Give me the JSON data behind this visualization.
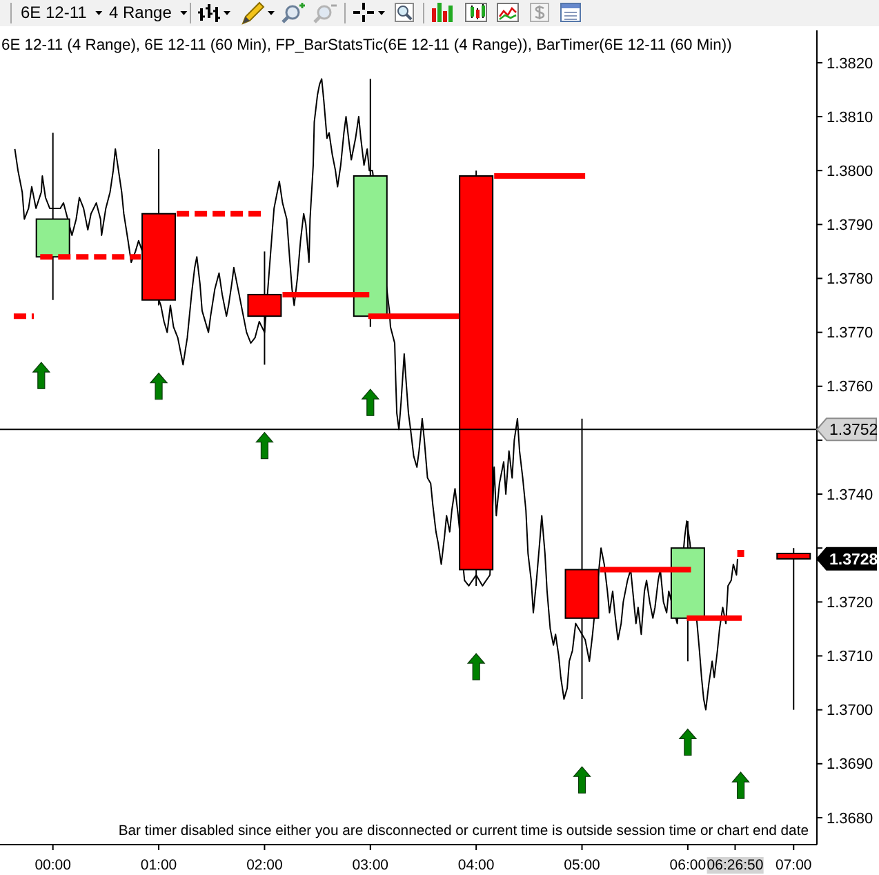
{
  "chart_data": {
    "type": "candlestick",
    "title": "6E 12-11 (4 Range), 6E 12-11 (60 Min), FP_BarStatsTic(6E 12-11 (4 Range)), BarTimer(6E 12-11 (60 Min))",
    "xlim": [
      -0.5,
      7.22
    ],
    "xticks": [
      {
        "value": 0,
        "label": "00:00"
      },
      {
        "value": 1,
        "label": "01:00"
      },
      {
        "value": 2,
        "label": "02:00"
      },
      {
        "value": 3,
        "label": "03:00"
      },
      {
        "value": 4,
        "label": "04:00"
      },
      {
        "value": 5,
        "label": "05:00"
      },
      {
        "value": 6,
        "label": "06:00"
      },
      {
        "value": 6.4472,
        "label": "06:26:50"
      },
      {
        "value": 7,
        "label": "07:00"
      }
    ],
    "ylim": [
      1.3675,
      1.3826
    ],
    "yticks": [
      {
        "value": 1.368,
        "label": "1.3680"
      },
      {
        "value": 1.369,
        "label": "1.3690"
      },
      {
        "value": 1.37,
        "label": "1.3700"
      },
      {
        "value": 1.371,
        "label": "1.3710"
      },
      {
        "value": 1.372,
        "label": "1.3720"
      },
      {
        "value": 1.373,
        "label": null
      },
      {
        "value": 1.374,
        "label": "1.3740"
      },
      {
        "value": 1.375,
        "label": null
      },
      {
        "value": 1.376,
        "label": "1.3760"
      },
      {
        "value": 1.377,
        "label": "1.3770"
      },
      {
        "value": 1.378,
        "label": "1.3780"
      },
      {
        "value": 1.379,
        "label": "1.3790"
      },
      {
        "value": 1.38,
        "label": "1.3800"
      },
      {
        "value": 1.381,
        "label": "1.3810"
      },
      {
        "value": 1.382,
        "label": "1.3820"
      }
    ],
    "series": [
      {
        "type": "line",
        "color": "#000000",
        "x": [
          -0.36,
          -0.33,
          -0.31,
          -0.29,
          -0.27,
          -0.23,
          -0.2,
          -0.16,
          -0.11,
          -0.1,
          -0.07,
          -0.03,
          0.07,
          0.1,
          0.18,
          0.22,
          0.25,
          0.29,
          0.33,
          0.36,
          0.41,
          0.45,
          0.46,
          0.5,
          0.54,
          0.57,
          0.59,
          0.62,
          0.65,
          0.67,
          0.71,
          0.74,
          0.78,
          0.81,
          1.02,
          1.05,
          1.08,
          1.11,
          1.14,
          1.18,
          1.21,
          1.23,
          1.27,
          1.31,
          1.34,
          1.36,
          1.39,
          1.41,
          1.47,
          1.49,
          1.53,
          1.57,
          1.6,
          1.64,
          1.66,
          1.69,
          1.71,
          1.75,
          1.79,
          1.83,
          1.87,
          1.91,
          1.95,
          2.0,
          2.07,
          2.09,
          2.12,
          2.14,
          2.17,
          2.21,
          2.24,
          2.26,
          2.28,
          2.31,
          2.34,
          2.37,
          2.39,
          2.42,
          2.43,
          2.46,
          2.47,
          2.5,
          2.52,
          2.54,
          2.56,
          2.59,
          2.61,
          2.64,
          2.67,
          2.69,
          2.72,
          2.75,
          2.77,
          2.8,
          2.82,
          2.86,
          2.89,
          2.91,
          2.94,
          2.97,
          2.99,
          3.02,
          3.18,
          3.19,
          3.23,
          3.24,
          3.25,
          3.27,
          3.29,
          3.32,
          3.33,
          3.36,
          3.38,
          3.41,
          3.44,
          3.46,
          3.49,
          3.51,
          3.54,
          3.57,
          3.59,
          3.62,
          3.64,
          3.67,
          3.7,
          3.72,
          3.75,
          3.77,
          3.8,
          3.83,
          3.89,
          3.93,
          4.0,
          4.06,
          4.13,
          4.17,
          4.19,
          4.22,
          4.26,
          4.28,
          4.31,
          4.34,
          4.36,
          4.39,
          4.41,
          4.44,
          4.47,
          4.49,
          4.52,
          4.54,
          4.57,
          4.6,
          4.62,
          4.65,
          4.67,
          4.7,
          4.73,
          4.75,
          4.78,
          4.8,
          4.83,
          4.86,
          4.88,
          4.91,
          4.94,
          5.03,
          5.07,
          5.1,
          5.18,
          5.21,
          5.24,
          5.26,
          5.29,
          5.31,
          5.34,
          5.37,
          5.39,
          5.43,
          5.46,
          5.48,
          5.51,
          5.53,
          5.56,
          5.59,
          5.61,
          5.64,
          5.67,
          5.69,
          5.72,
          5.74,
          5.77,
          5.8,
          5.82,
          5.9,
          5.97,
          5.99,
          6.02,
          6.11,
          6.13,
          6.15,
          6.17,
          6.2,
          6.23,
          6.25,
          6.28,
          6.3,
          6.33,
          6.36,
          6.38,
          6.41,
          6.43,
          6.46,
          6.47
        ],
        "values": [
          1.3804,
          1.38,
          1.3798,
          1.3796,
          1.3791,
          1.3793,
          1.3797,
          1.3793,
          1.3796,
          1.3799,
          1.3795,
          1.3793,
          1.3793,
          1.3794,
          1.3788,
          1.3791,
          1.3795,
          1.3793,
          1.3789,
          1.3792,
          1.3794,
          1.3791,
          1.3788,
          1.3793,
          1.3796,
          1.38,
          1.3804,
          1.38,
          1.3796,
          1.3792,
          1.3787,
          1.3783,
          1.3785,
          1.3787,
          1.3775,
          1.3772,
          1.377,
          1.3775,
          1.3771,
          1.3769,
          1.3766,
          1.3764,
          1.3769,
          1.3777,
          1.3782,
          1.3784,
          1.3779,
          1.3774,
          1.377,
          1.3773,
          1.3778,
          1.3781,
          1.3777,
          1.3773,
          1.3775,
          1.3779,
          1.3782,
          1.3778,
          1.3774,
          1.377,
          1.3768,
          1.3769,
          1.3772,
          1.377,
          1.3788,
          1.3793,
          1.3796,
          1.3798,
          1.3794,
          1.3791,
          1.3783,
          1.3778,
          1.3775,
          1.378,
          1.3787,
          1.3792,
          1.379,
          1.3783,
          1.3791,
          1.3801,
          1.3809,
          1.3814,
          1.3816,
          1.3817,
          1.3813,
          1.3806,
          1.3807,
          1.3803,
          1.38,
          1.3797,
          1.3801,
          1.3807,
          1.381,
          1.3805,
          1.3802,
          1.3806,
          1.381,
          1.3806,
          1.3801,
          1.3804,
          1.38,
          1.38,
          1.3774,
          1.3771,
          1.3768,
          1.3761,
          1.3755,
          1.3752,
          1.3757,
          1.3766,
          1.3763,
          1.3755,
          1.3752,
          1.3747,
          1.3745,
          1.3748,
          1.3754,
          1.375,
          1.3743,
          1.3742,
          1.3738,
          1.3733,
          1.3731,
          1.3727,
          1.3732,
          1.3736,
          1.3733,
          1.3737,
          1.3741,
          1.3736,
          1.3724,
          1.3723,
          1.3725,
          1.3723,
          1.3725,
          1.3745,
          1.3736,
          1.3742,
          1.3746,
          1.374,
          1.3748,
          1.3743,
          1.375,
          1.3754,
          1.3748,
          1.3743,
          1.3737,
          1.3729,
          1.3724,
          1.3718,
          1.3724,
          1.3731,
          1.3736,
          1.3729,
          1.3722,
          1.3715,
          1.3712,
          1.3714,
          1.371,
          1.3706,
          1.3702,
          1.3704,
          1.3709,
          1.3711,
          1.3716,
          1.3713,
          1.3709,
          1.3714,
          1.373,
          1.3727,
          1.3722,
          1.3718,
          1.3722,
          1.3718,
          1.3713,
          1.3716,
          1.372,
          1.3724,
          1.3726,
          1.3722,
          1.3716,
          1.3719,
          1.3714,
          1.3722,
          1.3724,
          1.372,
          1.3717,
          1.3719,
          1.3724,
          1.3726,
          1.372,
          1.3718,
          1.3722,
          1.3716,
          1.3732,
          1.3735,
          1.3731,
          1.3711,
          1.3706,
          1.3702,
          1.37,
          1.3705,
          1.3709,
          1.3706,
          1.3711,
          1.3715,
          1.3719,
          1.3716,
          1.3723,
          1.3724,
          1.3727,
          1.3725,
          1.3728
        ]
      },
      {
        "x": [
          0,
          1,
          2,
          3,
          4,
          5,
          6,
          7
        ],
        "ohlc": [
          [
            1.3784,
            1.3807,
            1.3776,
            1.3791
          ],
          [
            1.3792,
            1.3804,
            1.3775,
            1.3776
          ],
          [
            1.3777,
            1.3785,
            1.3764,
            1.3773
          ],
          [
            1.3773,
            1.3817,
            1.3771,
            1.3799
          ],
          [
            1.3799,
            1.38,
            1.3723,
            1.3726
          ],
          [
            1.3726,
            1.3754,
            1.3702,
            1.3717
          ],
          [
            1.3717,
            1.3735,
            1.3709,
            1.373
          ],
          [
            1.3729,
            1.373,
            1.37,
            1.3728
          ]
        ],
        "colors": [
          "#90ee90",
          "#ff0000",
          "#ff0000",
          "#90ee90",
          "#ff0000",
          "#ff0000",
          "#90ee90",
          "#ff0000"
        ]
      },
      {
        "type": "line",
        "color": "#ff0000",
        "line_style": "dashed",
        "x": [
          -0.37,
          -0.18
        ],
        "values": [
          1.3773,
          1.3773
        ]
      },
      {
        "type": "line",
        "color": "#ff0000",
        "line_style": "dashed",
        "x": [
          -0.12,
          0.83
        ],
        "values": [
          1.3784,
          1.3784
        ]
      },
      {
        "type": "line",
        "color": "#ff0000",
        "line_style": "dashed",
        "x": [
          1.17,
          2.0
        ],
        "values": [
          1.3792,
          1.3792
        ]
      },
      {
        "type": "line",
        "color": "#ff0000",
        "x": [
          2.17,
          2.99
        ],
        "values": [
          1.3777,
          1.3777
        ]
      },
      {
        "type": "line",
        "color": "#ff0000",
        "x": [
          2.98,
          3.84
        ],
        "values": [
          1.3773,
          1.3773
        ]
      },
      {
        "type": "line",
        "color": "#ff0000",
        "x": [
          4.17,
          5.03
        ],
        "values": [
          1.3799,
          1.3799
        ]
      },
      {
        "type": "line",
        "color": "#ff0000",
        "x": [
          5.17,
          6.03
        ],
        "values": [
          1.3726,
          1.3726
        ]
      },
      {
        "type": "line",
        "color": "#ff0000",
        "x": [
          5.99,
          6.51
        ],
        "values": [
          1.3717,
          1.3717
        ]
      },
      {
        "type": "scatter",
        "color": "#008000",
        "x": [
          -0.11,
          1,
          2,
          3,
          4,
          5,
          6,
          6.5
        ],
        "values": [
          1.3762,
          1.376,
          1.3749,
          1.3757,
          1.3708,
          1.3687,
          1.3694,
          1.3686
        ]
      },
      {
        "type": "scatter",
        "color": "#ff0000",
        "marker": "square",
        "x": [
          6.5
        ],
        "values": [
          1.3729
        ]
      }
    ],
    "ref_lines": [
      {
        "axis": "y",
        "value": 1.3752,
        "label": "1.3752",
        "color": "#000000"
      }
    ],
    "annotations": [
      "6E 12-11",
      "4 Range",
      "1.3728",
      "Bar timer disabled since either you are disconnected or current time is outside session time or chart end date"
    ]
  }
}
